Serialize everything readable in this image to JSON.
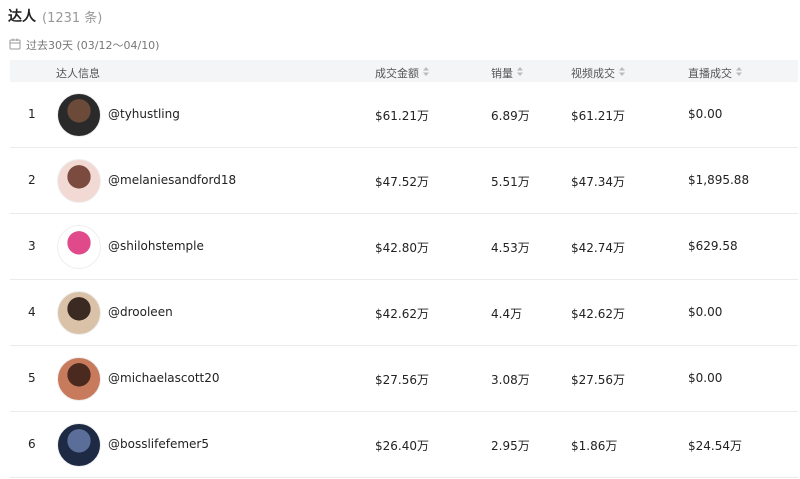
{
  "header": {
    "title": "达人",
    "count": "(1231 条)",
    "date_range": "过去30天 (03/12～04/10)"
  },
  "table": {
    "columns": [
      "达人信息",
      "成交金额",
      "销量",
      "视频成交",
      "直播成交"
    ],
    "rows": [
      [
        1,
        "@tyhustling",
        "$61.21万",
        "6.89万",
        "$61.21万",
        "$0.00"
      ],
      [
        2,
        "@melaniesandford18",
        "$47.52万",
        "5.51万",
        "$47.34万",
        "$1,895.88"
      ],
      [
        3,
        "@shilohstemple",
        "$42.80万",
        "4.53万",
        "$42.74万",
        "$629.58"
      ],
      [
        4,
        "@drooleen",
        "$42.62万",
        "4.4万",
        "$42.62万",
        "$0.00"
      ],
      [
        5,
        "@michaelascott20",
        "$27.56万",
        "3.08万",
        "$27.56万",
        "$0.00"
      ],
      [
        6,
        "@bosslifefemer5",
        "$26.40万",
        "2.95万",
        "$1.86万",
        "$24.54万"
      ]
    ]
  }
}
